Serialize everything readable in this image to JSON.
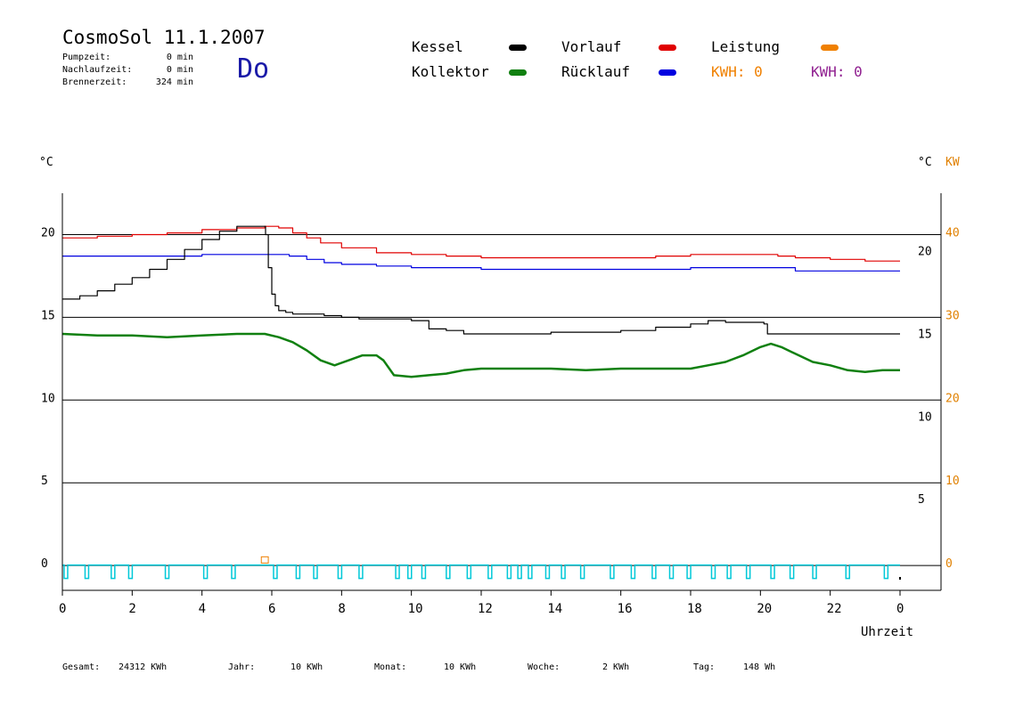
{
  "header": {
    "title": "CosmoSol 11.1.2007",
    "day": "Do",
    "stats": [
      {
        "label": "Pumpzeit:",
        "value": "0 min"
      },
      {
        "label": "Nachlaufzeit:",
        "value": "0 min"
      },
      {
        "label": "Brennerzeit:",
        "value": "324 min"
      }
    ]
  },
  "legend": {
    "kessel": {
      "label": "Kessel",
      "color": "#000000"
    },
    "kollektor": {
      "label": "Kollektor",
      "color": "#108010"
    },
    "vorlauf": {
      "label": "Vorlauf",
      "color": "#e00000"
    },
    "ruecklauf": {
      "label": "Rücklauf",
      "color": "#0000e0"
    },
    "leistung": {
      "label": "Leistung",
      "color": "#f08000"
    },
    "kwh_orange": "KWH: 0",
    "kwh_purple": "KWH: 0"
  },
  "footer": [
    {
      "label": "Gesamt:",
      "value": "24312 KWh"
    },
    {
      "label": "Jahr:",
      "value": "10 KWh"
    },
    {
      "label": "Monat:",
      "value": "10 KWh"
    },
    {
      "label": "Woche:",
      "value": "2 KWh"
    },
    {
      "label": "Tag:",
      "value": "148 Wh"
    }
  ],
  "chart_data": {
    "type": "line",
    "xlabel": "Uhrzeit",
    "ylabel_left": "°C",
    "ylabel_right": "°C",
    "ylabel_right2": "KW",
    "xlim": [
      0,
      24
    ],
    "ylim": [
      -1.5,
      22.5
    ],
    "ylim_right2": [
      -3,
      45
    ],
    "x_ticks": [
      "0",
      "2",
      "4",
      "6",
      "8",
      "10",
      "12",
      "14",
      "16",
      "18",
      "20",
      "22",
      "0"
    ],
    "y_ticks_left": [
      "0",
      "5",
      "10",
      "15",
      "20"
    ],
    "y_ticks_right": [
      "5",
      "10",
      "15",
      "20"
    ],
    "y_ticks_right2": [
      "0",
      "10",
      "20",
      "30",
      "40"
    ],
    "grid": "horizontal at 0, 5, 10, 15, 20",
    "series": [
      {
        "name": "Vorlauf",
        "color": "#e00000",
        "x": [
          0,
          1,
          2,
          3,
          4,
          5,
          5.8,
          6.2,
          6.6,
          7.0,
          7.4,
          8.0,
          9.0,
          10.0,
          11.0,
          12.0,
          13.0,
          14.0,
          15.0,
          16.0,
          17.0,
          18.0,
          19.0,
          20.0,
          20.5,
          21.0,
          22.0,
          23.0,
          24.0
        ],
        "values": [
          19.8,
          19.9,
          20.0,
          20.1,
          20.3,
          20.4,
          20.5,
          20.4,
          20.1,
          19.8,
          19.5,
          19.2,
          18.9,
          18.8,
          18.7,
          18.6,
          18.6,
          18.6,
          18.6,
          18.6,
          18.7,
          18.8,
          18.8,
          18.8,
          18.7,
          18.6,
          18.5,
          18.4,
          18.4
        ]
      },
      {
        "name": "Rücklauf",
        "color": "#0000e0",
        "x": [
          0,
          1,
          2,
          3,
          4,
          5,
          5.8,
          6.5,
          7.0,
          7.5,
          8.0,
          9.0,
          10.0,
          11.0,
          12.0,
          14.0,
          16.0,
          18.0,
          20.0,
          21.0,
          22.0,
          23.0,
          24.0
        ],
        "values": [
          18.7,
          18.7,
          18.7,
          18.7,
          18.8,
          18.8,
          18.8,
          18.7,
          18.5,
          18.3,
          18.2,
          18.1,
          18.0,
          18.0,
          17.9,
          17.9,
          17.9,
          18.0,
          18.0,
          17.8,
          17.8,
          17.8,
          17.8
        ]
      },
      {
        "name": "Kessel",
        "color": "#000000",
        "x": [
          0,
          0.5,
          1,
          1.5,
          2,
          2.5,
          3,
          3.5,
          4,
          4.5,
          5,
          5.5,
          5.8,
          5.82,
          5.9,
          6.0,
          6.1,
          6.2,
          6.4,
          6.6,
          7.0,
          7.5,
          8.0,
          8.5,
          9.0,
          9.5,
          10.0,
          10.5,
          11.0,
          11.5,
          12.0,
          13.0,
          14.0,
          15.0,
          16.0,
          17.0,
          18.0,
          18.5,
          19.0,
          20.0,
          20.1,
          20.2,
          20.5,
          21.0,
          22.0,
          23.0,
          24.0
        ],
        "values": [
          16.1,
          16.3,
          16.6,
          17.0,
          17.4,
          17.9,
          18.5,
          19.1,
          19.7,
          20.2,
          20.5,
          20.5,
          20.5,
          20.0,
          18.0,
          16.4,
          15.7,
          15.4,
          15.3,
          15.2,
          15.2,
          15.1,
          15.0,
          14.9,
          14.9,
          14.9,
          14.8,
          14.3,
          14.2,
          14.0,
          14.0,
          14.0,
          14.1,
          14.1,
          14.2,
          14.4,
          14.6,
          14.8,
          14.7,
          14.7,
          14.6,
          14.0,
          14.0,
          14.0,
          14.0,
          14.0,
          14.0
        ]
      },
      {
        "name": "Kollektor",
        "color": "#108010",
        "x": [
          0,
          1,
          2,
          3,
          4,
          5,
          5.8,
          6.2,
          6.6,
          7.0,
          7.4,
          7.8,
          8.2,
          8.6,
          9.0,
          9.2,
          9.5,
          10.0,
          10.5,
          11.0,
          11.5,
          12.0,
          13.0,
          14.0,
          15.0,
          16.0,
          17.0,
          17.5,
          18.0,
          18.5,
          19.0,
          19.5,
          20.0,
          20.3,
          20.6,
          21.0,
          21.5,
          22.0,
          22.5,
          23.0,
          23.5,
          24.0
        ],
        "values": [
          14.0,
          13.9,
          13.9,
          13.8,
          13.9,
          14.0,
          14.0,
          13.8,
          13.5,
          13.0,
          12.4,
          12.1,
          12.4,
          12.7,
          12.7,
          12.4,
          11.5,
          11.4,
          11.5,
          11.6,
          11.8,
          11.9,
          11.9,
          11.9,
          11.8,
          11.9,
          11.9,
          11.9,
          11.9,
          12.1,
          12.3,
          12.7,
          13.2,
          13.4,
          13.2,
          12.8,
          12.3,
          12.1,
          11.8,
          11.7,
          11.8,
          11.8
        ]
      },
      {
        "name": "Leistung",
        "color": "#f08000",
        "x": [
          5.7,
          5.9
        ],
        "values": [
          0.3,
          0.3
        ]
      }
    ],
    "pump_pulses": {
      "name": "Pumpe",
      "color": "#00c8d8",
      "x": [
        0.05,
        0.65,
        1.4,
        1.9,
        2.95,
        4.05,
        4.85,
        6.05,
        6.7,
        7.2,
        7.9,
        8.5,
        9.55,
        9.9,
        10.3,
        11.0,
        11.6,
        12.2,
        12.75,
        13.05,
        13.35,
        13.85,
        14.3,
        14.85,
        15.7,
        16.3,
        16.9,
        17.4,
        17.9,
        18.6,
        19.05,
        19.6,
        20.3,
        20.85,
        21.5,
        22.45,
        23.55
      ]
    }
  }
}
